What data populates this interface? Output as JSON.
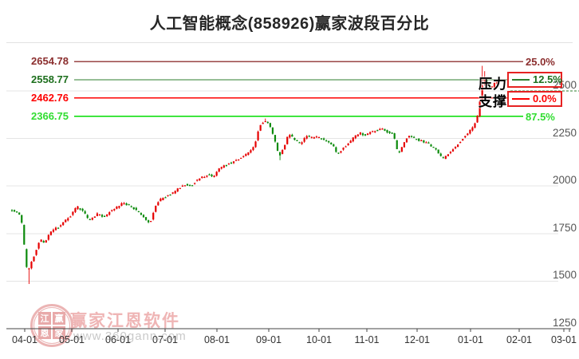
{
  "page": {
    "title": "人工智能概念(858926)赢家波段百分比"
  },
  "annotations": {
    "pressure": "压力",
    "support": "支撑"
  },
  "watermark": {
    "brand": "赢家江恩软件",
    "url": "www.360gann.com",
    "logo_chars": [
      "江",
      "赢",
      "恩",
      "家"
    ],
    "brand_color": "#efb5b5"
  },
  "chart_data": {
    "type": "candlestick",
    "title": "人工智能概念(858926)赢家波段百分比",
    "symbol": "858926",
    "symbol_name": "人工智能概念",
    "up_color": "#e60000",
    "down_color": "#0b8a0b",
    "grid_color": "#e4e4e4",
    "axis_color": "#444444",
    "ylim": [
      1250,
      2726
    ],
    "y_ticks": [
      2500,
      2250,
      2000,
      1750,
      1500,
      1250
    ],
    "x_ticks": [
      "04-01",
      "05-01",
      "06-01",
      "07-01",
      "08-01",
      "09-01",
      "10-01",
      "11-01",
      "12-01",
      "01-01",
      "02-01",
      "03-01"
    ],
    "levels": [
      {
        "price": "2654.78",
        "value": 2654.78,
        "percent": "25.0%",
        "color": "#8b2e2e",
        "line_color": "#9a4646",
        "boxed": false
      },
      {
        "price": "2558.77",
        "value": 2558.77,
        "percent": "12.5%",
        "color": "#1d6f1d",
        "line_color": "#2e7d2e",
        "boxed": true
      },
      {
        "price": "2462.76",
        "value": 2462.76,
        "percent": "0.0%",
        "color": "#fe0000",
        "line_color": "#fe0000",
        "boxed": true
      },
      {
        "price": "2366.75",
        "value": 2366.75,
        "percent": "87.5%",
        "color": "#30dd30",
        "line_color": "#00dd00",
        "boxed": false
      }
    ],
    "box_border_color": "#e62222",
    "candle_count": 200,
    "price_path_anchors": [
      [
        0,
        1878
      ],
      [
        2,
        1862
      ],
      [
        4,
        1846
      ],
      [
        5,
        1760
      ],
      [
        6,
        1600
      ],
      [
        7,
        1548
      ],
      [
        8,
        1580
      ],
      [
        10,
        1655
      ],
      [
        12,
        1720
      ],
      [
        14,
        1702
      ],
      [
        16,
        1752
      ],
      [
        18,
        1772
      ],
      [
        21,
        1798
      ],
      [
        23,
        1832
      ],
      [
        25,
        1850
      ],
      [
        27,
        1892
      ],
      [
        30,
        1862
      ],
      [
        32,
        1820
      ],
      [
        34,
        1842
      ],
      [
        36,
        1856
      ],
      [
        38,
        1834
      ],
      [
        41,
        1872
      ],
      [
        44,
        1890
      ],
      [
        46,
        1910
      ],
      [
        49,
        1896
      ],
      [
        52,
        1866
      ],
      [
        54,
        1840
      ],
      [
        57,
        1802
      ],
      [
        59,
        1882
      ],
      [
        61,
        1925
      ],
      [
        63,
        1940
      ],
      [
        66,
        1960
      ],
      [
        69,
        1990
      ],
      [
        71,
        2010
      ],
      [
        74,
        2000
      ],
      [
        76,
        2030
      ],
      [
        79,
        2050
      ],
      [
        81,
        2060
      ],
      [
        83,
        2046
      ],
      [
        85,
        2086
      ],
      [
        87,
        2106
      ],
      [
        90,
        2120
      ],
      [
        93,
        2140
      ],
      [
        95,
        2156
      ],
      [
        98,
        2180
      ],
      [
        100,
        2210
      ],
      [
        102,
        2312
      ],
      [
        104,
        2344
      ],
      [
        106,
        2330
      ],
      [
        107,
        2298
      ],
      [
        108,
        2255
      ],
      [
        110,
        2152
      ],
      [
        112,
        2203
      ],
      [
        114,
        2276
      ],
      [
        116,
        2250
      ],
      [
        119,
        2222
      ],
      [
        121,
        2260
      ],
      [
        124,
        2254
      ],
      [
        126,
        2260
      ],
      [
        128,
        2244
      ],
      [
        130,
        2228
      ],
      [
        132,
        2216
      ],
      [
        134,
        2162
      ],
      [
        136,
        2196
      ],
      [
        139,
        2230
      ],
      [
        141,
        2260
      ],
      [
        143,
        2280
      ],
      [
        145,
        2268
      ],
      [
        147,
        2282
      ],
      [
        150,
        2292
      ],
      [
        152,
        2300
      ],
      [
        155,
        2282
      ],
      [
        157,
        2270
      ],
      [
        159,
        2160
      ],
      [
        161,
        2222
      ],
      [
        163,
        2260
      ],
      [
        166,
        2250
      ],
      [
        168,
        2238
      ],
      [
        170,
        2228
      ],
      [
        172,
        2216
      ],
      [
        175,
        2182
      ],
      [
        177,
        2142
      ],
      [
        180,
        2172
      ],
      [
        182,
        2202
      ],
      [
        184,
        2230
      ],
      [
        186,
        2260
      ],
      [
        189,
        2298
      ],
      [
        191,
        2338
      ],
      [
        192,
        2400
      ],
      [
        193,
        2492
      ],
      [
        194,
        2570
      ],
      [
        195,
        2552
      ],
      [
        196,
        2530
      ],
      [
        197,
        2514
      ],
      [
        198,
        2530
      ],
      [
        199,
        2545
      ]
    ],
    "wick_overrides": {
      "7": {
        "low": 1485
      },
      "104": {
        "high": 2355
      },
      "110": {
        "low": 2136
      },
      "193": {
        "high": 2632
      },
      "194": {
        "high": 2604
      }
    }
  }
}
